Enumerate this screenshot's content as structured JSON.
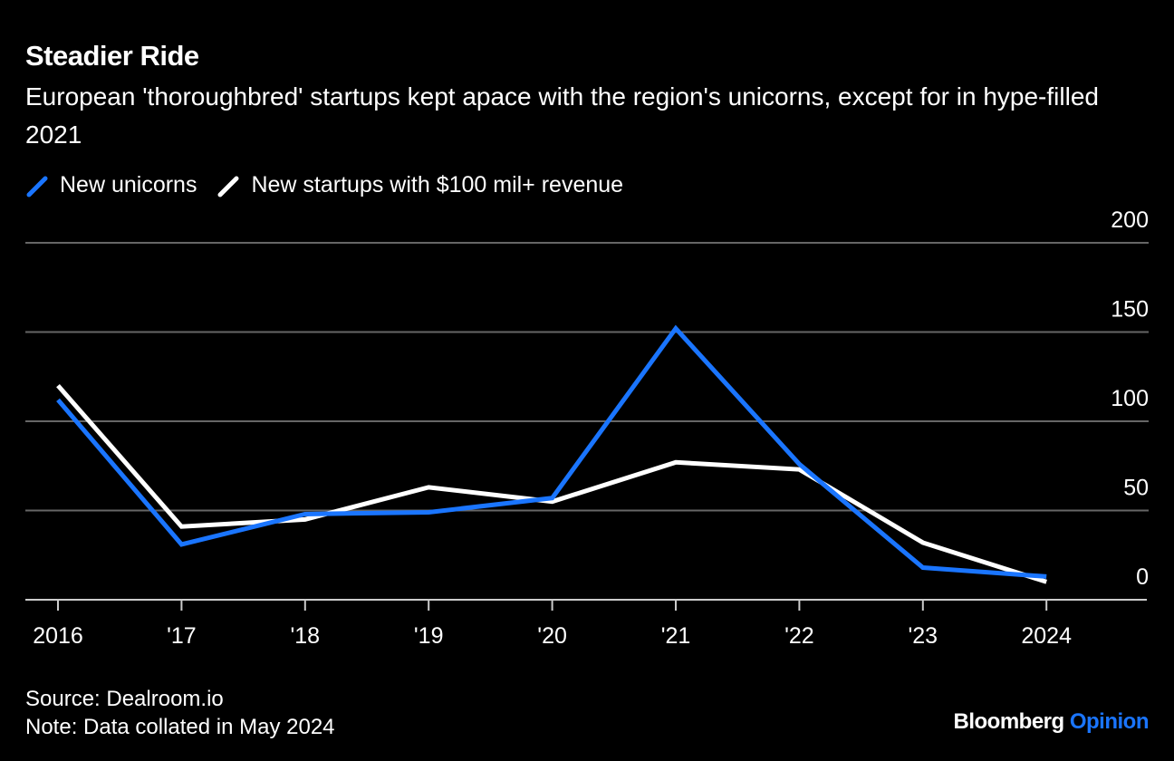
{
  "title": "Steadier Ride",
  "subtitle": "European 'thoroughbred' startups kept apace with the region's unicorns, except for in hype-filled 2021",
  "footer": {
    "source": "Source: Dealroom.io",
    "note": "Note: Data collated in May 2024"
  },
  "logo": {
    "brand": "Bloomberg",
    "suffix": "Opinion"
  },
  "chart_data": {
    "type": "line",
    "title": "Steadier Ride",
    "x": [
      "2016",
      "'17",
      "'18",
      "'19",
      "'20",
      "'21",
      "'22",
      "'23",
      "2024"
    ],
    "ylim": [
      0,
      200
    ],
    "yticks": [
      0,
      50,
      100,
      150,
      200
    ],
    "y_axis_position": "right",
    "grid": true,
    "legend_position": "top-left",
    "series": [
      {
        "name": "New unicorns",
        "color": "#1a75ff",
        "values": [
          112,
          31,
          48,
          49,
          57,
          152,
          76,
          18,
          13
        ]
      },
      {
        "name": "New startups with $100 mil+ revenue",
        "color": "#ffffff",
        "values": [
          120,
          41,
          45,
          63,
          55,
          77,
          73,
          32,
          10
        ]
      }
    ]
  }
}
